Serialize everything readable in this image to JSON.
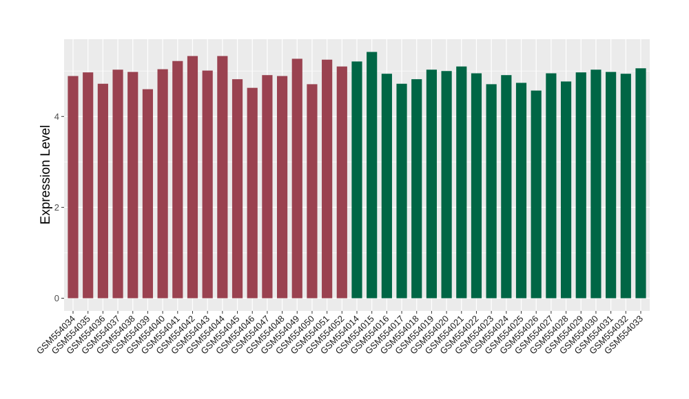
{
  "chart_data": {
    "type": "bar",
    "title": "",
    "xlabel": "",
    "ylabel": "Expression Level",
    "ylim": [
      -0.28,
      5.7
    ],
    "yticks": [
      0,
      2,
      4
    ],
    "ytick_labels": [
      "0",
      "2",
      "4"
    ],
    "grid": true,
    "legend": "none",
    "categories": [
      "GSM554034",
      "GSM554035",
      "GSM554036",
      "GSM554037",
      "GSM554038",
      "GSM554039",
      "GSM554040",
      "GSM554041",
      "GSM554042",
      "GSM554043",
      "GSM554044",
      "GSM554045",
      "GSM554046",
      "GSM554047",
      "GSM554048",
      "GSM554049",
      "GSM554050",
      "GSM554051",
      "GSM554052",
      "GSM554014",
      "GSM554015",
      "GSM554016",
      "GSM554017",
      "GSM554018",
      "GSM554019",
      "GSM554020",
      "GSM554021",
      "GSM554022",
      "GSM554023",
      "GSM554024",
      "GSM554025",
      "GSM554026",
      "GSM554027",
      "GSM554028",
      "GSM554029",
      "GSM554030",
      "GSM554031",
      "GSM554032",
      "GSM554033"
    ],
    "values": [
      4.89,
      4.97,
      4.72,
      5.03,
      4.98,
      4.6,
      5.04,
      5.22,
      5.33,
      5.01,
      5.33,
      4.82,
      4.63,
      4.91,
      4.89,
      5.27,
      4.71,
      5.25,
      5.1,
      5.21,
      5.42,
      4.94,
      4.72,
      4.82,
      5.03,
      5.0,
      5.1,
      4.95,
      4.71,
      4.91,
      4.74,
      4.57,
      4.95,
      4.77,
      4.97,
      5.03,
      4.98,
      4.94,
      5.06
    ],
    "bar_groups": [
      0,
      0,
      0,
      0,
      0,
      0,
      0,
      0,
      0,
      0,
      0,
      0,
      0,
      0,
      0,
      0,
      0,
      0,
      0,
      1,
      1,
      1,
      1,
      1,
      1,
      1,
      1,
      1,
      1,
      1,
      1,
      1,
      1,
      1,
      1,
      1,
      1,
      1,
      1
    ],
    "colors": [
      "#9a4250",
      "#006645"
    ],
    "panel_background": "#ebebeb"
  }
}
